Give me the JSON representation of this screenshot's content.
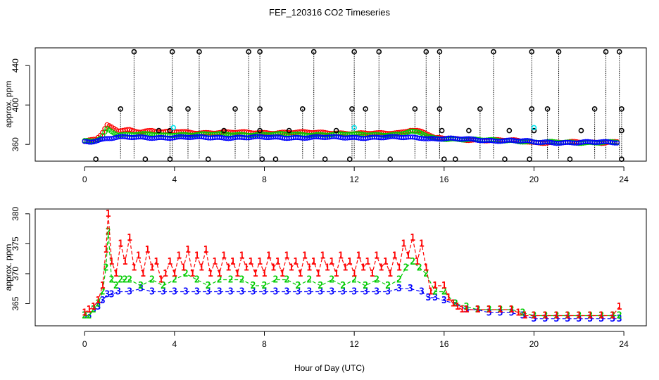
{
  "figure": {
    "title": "FEF_120316  CO2 Timeseries",
    "xlabel": "Hour of Day (UTC)"
  },
  "chart_data": [
    {
      "type": "scatter",
      "title": "FEF_120316  CO2 Timeseries",
      "ylabel": "approx. ppm",
      "xlabel": "",
      "xlim": [
        -2.2,
        25
      ],
      "ylim": [
        343,
        458
      ],
      "x_ticks": [
        0,
        4,
        8,
        12,
        16,
        20,
        24
      ],
      "y_ticks": [
        360,
        400,
        440
      ],
      "grid": false,
      "legend": "none",
      "colors": {
        "black": "#000000",
        "red": "#ff0000",
        "green": "#00cc00",
        "blue": "#0000ff",
        "cyan": "#00e5ee"
      },
      "markers": {
        "black_high_x": [
          2.2,
          3.9,
          5.1,
          7.3,
          7.8,
          10.2,
          12.0,
          13.1,
          15.2,
          15.8,
          18.2,
          19.9,
          21.1,
          23.2,
          23.8
        ],
        "black_high_y": 454,
        "black_mid_x": [
          1.6,
          3.8,
          4.6,
          6.7,
          7.8,
          9.7,
          11.9,
          12.5,
          14.7,
          15.8,
          17.6,
          19.9,
          20.6,
          22.7,
          23.9
        ],
        "black_mid_y": 396,
        "black_low_x": [
          0.5,
          2.7,
          3.8,
          5.5,
          7.9,
          8.5,
          10.7,
          11.8,
          13.6,
          16.0,
          16.5,
          18.7,
          19.8,
          21.6,
          23.9
        ],
        "black_low_y": 345,
        "black_small_x": [
          3.3,
          3.8,
          6.2,
          7.8,
          9.1,
          11.2,
          15.9,
          17.1,
          18.9,
          20.0,
          22.1,
          23.9
        ],
        "black_small_y": 374,
        "cyan_x": [
          3.95,
          12.0,
          20.0
        ],
        "cyan_y": [
          377,
          377,
          377
        ]
      },
      "series": [
        {
          "name": "",
          "color": "red",
          "x": [
            0,
            0.25,
            0.5,
            0.75,
            1,
            1.5,
            2,
            2.5,
            3,
            3.5,
            4,
            5,
            6,
            7,
            8,
            9,
            10,
            11,
            12,
            13,
            14,
            14.5,
            15,
            15.3,
            15.6,
            16,
            17,
            18,
            19,
            19.7,
            20,
            21,
            22,
            23,
            23.7
          ],
          "y": [
            363,
            364,
            365,
            370,
            379,
            374,
            375,
            373,
            374,
            372,
            373,
            372,
            372,
            372,
            372,
            372,
            372,
            372,
            371,
            371,
            372,
            375,
            373,
            370,
            366,
            366,
            365,
            364,
            364,
            363,
            362,
            362,
            362,
            362,
            363
          ]
        },
        {
          "name": "",
          "color": "green",
          "x": [
            0,
            0.25,
            0.5,
            0.75,
            1,
            1.5,
            2,
            2.5,
            3,
            3.5,
            4,
            5,
            6,
            7,
            8,
            9,
            10,
            11,
            12,
            13,
            14,
            14.5,
            15,
            15.3,
            15.6,
            16,
            17,
            18,
            19,
            19.7,
            20,
            21,
            22,
            23,
            23.7
          ],
          "y": [
            363,
            363,
            364,
            367,
            376,
            370,
            370,
            370,
            370,
            369,
            370,
            370,
            370,
            370,
            370,
            370,
            370,
            370,
            370,
            370,
            370,
            373,
            371,
            368,
            366,
            366,
            365,
            364,
            364,
            363,
            362,
            362,
            362,
            362,
            362
          ]
        },
        {
          "name": "",
          "color": "blue",
          "x": [
            0,
            0.25,
            0.5,
            0.75,
            1,
            1.5,
            2,
            2.5,
            3,
            3.5,
            4,
            5,
            6,
            7,
            8,
            9,
            10,
            11,
            12,
            13,
            14,
            14.5,
            15,
            15.3,
            15.6,
            16,
            17,
            18,
            19,
            19.7,
            20,
            21,
            22,
            23,
            23.7
          ],
          "y": [
            363,
            363,
            364,
            365,
            366,
            367,
            367,
            367,
            367,
            367,
            367,
            367,
            367,
            367,
            367,
            367,
            367,
            367,
            367,
            367,
            367,
            367,
            367,
            366,
            366,
            366,
            365,
            364,
            364,
            363,
            362,
            362,
            362,
            362,
            362
          ]
        }
      ]
    },
    {
      "type": "line",
      "title": "",
      "ylabel": "approx. ppm",
      "xlabel": "Hour of Day (UTC)",
      "xlim": [
        -2.2,
        25
      ],
      "ylim": [
        361.3,
        380.8
      ],
      "x_ticks": [
        0,
        4,
        8,
        12,
        16,
        20,
        24
      ],
      "y_ticks": [
        365,
        370,
        375,
        380
      ],
      "grid": false,
      "legend": "none",
      "colors": {
        "1": "#ff0000",
        "2": "#00cc00",
        "3": "#0000ff"
      },
      "series": [
        {
          "name": "",
          "symbol": "1",
          "color": "1",
          "x": [
            0,
            0.2,
            0.4,
            0.6,
            0.8,
            0.95,
            1.05,
            1.2,
            1.4,
            1.6,
            1.8,
            2.0,
            2.2,
            2.4,
            2.6,
            2.8,
            3.0,
            3.2,
            3.4,
            3.6,
            3.8,
            4.0,
            4.2,
            4.4,
            4.6,
            4.8,
            5.0,
            5.2,
            5.4,
            5.6,
            5.8,
            6.0,
            6.2,
            6.4,
            6.6,
            6.8,
            7.0,
            7.2,
            7.4,
            7.6,
            7.8,
            8.0,
            8.2,
            8.4,
            8.6,
            8.8,
            9.0,
            9.2,
            9.4,
            9.6,
            9.8,
            10.0,
            10.2,
            10.4,
            10.6,
            10.8,
            11.0,
            11.2,
            11.4,
            11.6,
            11.8,
            12.0,
            12.2,
            12.4,
            12.6,
            12.8,
            13.0,
            13.2,
            13.4,
            13.6,
            13.8,
            14.0,
            14.2,
            14.4,
            14.6,
            14.8,
            15.0,
            15.2,
            15.4,
            15.6,
            16.0,
            16.2,
            16.4,
            16.6,
            16.8,
            17.0,
            17.5,
            18.0,
            18.5,
            19.0,
            19.3,
            19.6,
            20.0,
            20.5,
            21.0,
            21.5,
            22.0,
            22.5,
            23.0,
            23.5,
            23.8
          ],
          "y": [
            363.5,
            364,
            364.5,
            365.5,
            368,
            374,
            380,
            372,
            370,
            375,
            372,
            376,
            371,
            373,
            370,
            374,
            371,
            372,
            369,
            370,
            372,
            370,
            373,
            371,
            374,
            370,
            373,
            371,
            374,
            370,
            372,
            370,
            373,
            371,
            372,
            370,
            373,
            371,
            372,
            370,
            372,
            370,
            373,
            371,
            372,
            370,
            373,
            371,
            372,
            370,
            373,
            371,
            372,
            370,
            373,
            371,
            372,
            370,
            373,
            371,
            372,
            370,
            373,
            371,
            372,
            370,
            373,
            371,
            372,
            370,
            373,
            371,
            375,
            373,
            376,
            372,
            375,
            371,
            367,
            368,
            368,
            366,
            365,
            364.5,
            364,
            364,
            364,
            364,
            364,
            364,
            363.5,
            363,
            363,
            363,
            363,
            363,
            363,
            363,
            363,
            363,
            364.5
          ]
        },
        {
          "name": "",
          "symbol": "2",
          "color": "2",
          "x": [
            0,
            0.2,
            0.4,
            0.6,
            0.8,
            0.95,
            1.05,
            1.2,
            1.4,
            1.6,
            1.8,
            2.0,
            2.5,
            3.0,
            3.5,
            4.0,
            4.5,
            5.0,
            5.5,
            6.0,
            6.5,
            7.0,
            7.5,
            8.0,
            8.5,
            9.0,
            9.5,
            10.0,
            10.5,
            11.0,
            11.5,
            12.0,
            12.5,
            13.0,
            13.5,
            14.0,
            14.3,
            14.6,
            14.9,
            15.2,
            15.6,
            16.0,
            16.5,
            17.0,
            17.5,
            18.0,
            18.5,
            19.0,
            19.5,
            20.0,
            20.5,
            21.0,
            21.5,
            22.0,
            22.5,
            23.0,
            23.5,
            23.8
          ],
          "y": [
            363,
            363,
            364,
            365,
            367,
            371,
            377,
            369,
            368,
            369,
            369,
            369,
            368,
            369,
            368,
            369,
            370,
            369,
            368,
            369,
            369,
            369,
            368,
            368,
            369,
            369,
            368,
            369,
            368,
            369,
            368,
            369,
            368,
            369,
            368,
            369,
            371,
            372,
            371,
            370,
            367,
            367,
            365,
            364.5,
            364,
            364,
            364,
            364,
            363.5,
            363,
            363,
            363,
            363,
            363,
            363,
            363,
            363,
            363
          ]
        },
        {
          "name": "",
          "symbol": "3",
          "color": "3",
          "x": [
            0,
            0.2,
            0.4,
            0.6,
            0.8,
            1.0,
            1.2,
            1.5,
            2.0,
            2.5,
            3.0,
            3.5,
            4.0,
            4.5,
            5.0,
            5.5,
            6.0,
            6.5,
            7.0,
            7.5,
            8.0,
            8.5,
            9.0,
            9.5,
            10.0,
            10.5,
            11.0,
            11.5,
            12.0,
            12.5,
            13.0,
            13.5,
            14.0,
            14.5,
            15.0,
            15.3,
            15.6,
            16.0,
            16.5,
            17.0,
            17.5,
            18.0,
            18.5,
            19.0,
            19.5,
            20.0,
            20.5,
            21.0,
            21.5,
            22.0,
            22.5,
            23.0,
            23.5,
            23.8
          ],
          "y": [
            363,
            363,
            364,
            364.5,
            365.5,
            366.5,
            366.5,
            367,
            367,
            367.5,
            367,
            367,
            367,
            367,
            367,
            367,
            367,
            367,
            367,
            367,
            367,
            367,
            367,
            367,
            367,
            367,
            367,
            367,
            367,
            367,
            367,
            367,
            367.5,
            367.5,
            367,
            366,
            366,
            365.5,
            365,
            364,
            364,
            363.5,
            363.5,
            363.5,
            363,
            362.5,
            362.5,
            362.5,
            362.5,
            362.5,
            362.5,
            362.5,
            362.5,
            362.5
          ]
        }
      ]
    }
  ]
}
